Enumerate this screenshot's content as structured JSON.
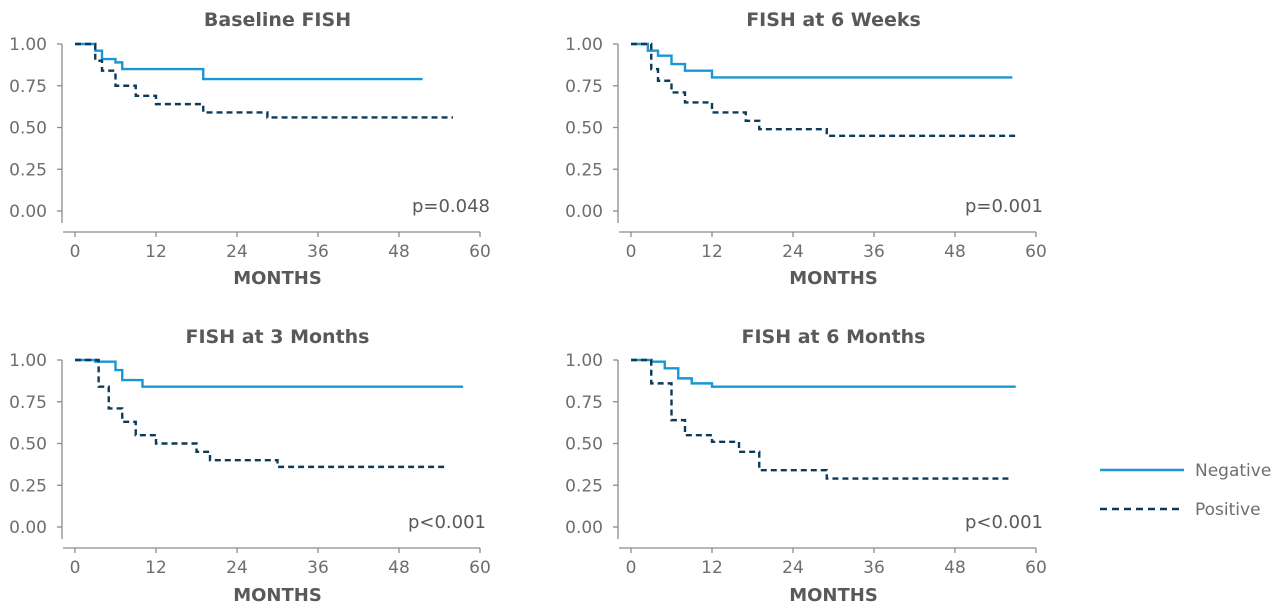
{
  "colors": {
    "negative": "#1a96d3",
    "positive": "#0c3a59",
    "axis": "#8a8c8e",
    "text": "#58595b"
  },
  "legend": {
    "items": [
      {
        "label": "Negative",
        "style": "solid",
        "color": "#1a96d3"
      },
      {
        "label": "Positive",
        "style": "dashed",
        "color": "#0c3a59"
      }
    ]
  },
  "chart_data": [
    {
      "type": "line",
      "title": "Baseline FISH",
      "xlabel": "MONTHS",
      "ylabel": "",
      "xlim": [
        0,
        60
      ],
      "ylim": [
        0,
        1
      ],
      "xticks": [
        "0",
        "12",
        "24",
        "36",
        "48",
        "60"
      ],
      "yticks": [
        "0.00",
        "0.25",
        "0.50",
        "0.75",
        "1.00"
      ],
      "annotation": "p=0.048",
      "series": [
        {
          "name": "Negative",
          "style": "solid",
          "x": [
            0,
            3,
            4,
            6,
            7,
            19,
            51.5
          ],
          "y": [
            1.0,
            0.96,
            0.91,
            0.89,
            0.85,
            0.79,
            0.79
          ]
        },
        {
          "name": "Positive",
          "style": "dashed",
          "x": [
            0,
            3,
            4,
            6,
            9,
            12,
            19,
            28.5,
            56
          ],
          "y": [
            1.0,
            0.9,
            0.84,
            0.75,
            0.69,
            0.64,
            0.59,
            0.56,
            0.56
          ]
        }
      ]
    },
    {
      "type": "line",
      "title": "FISH at 6 Weeks",
      "xlabel": "MONTHS",
      "ylabel": "",
      "xlim": [
        0,
        60
      ],
      "ylim": [
        0,
        1
      ],
      "xticks": [
        "0",
        "12",
        "24",
        "36",
        "48",
        "60"
      ],
      "yticks": [
        "0.00",
        "0.25",
        "0.50",
        "0.75",
        "1.00"
      ],
      "annotation": "p=0.001",
      "series": [
        {
          "name": "Negative",
          "style": "solid",
          "x": [
            0,
            2.5,
            4,
            6,
            8,
            12,
            56.5
          ],
          "y": [
            1.0,
            0.96,
            0.93,
            0.88,
            0.84,
            0.8,
            0.8
          ]
        },
        {
          "name": "Positive",
          "style": "dashed",
          "x": [
            0,
            3,
            4,
            6,
            8,
            12,
            17,
            19,
            29,
            57
          ],
          "y": [
            1.0,
            0.85,
            0.78,
            0.71,
            0.65,
            0.59,
            0.54,
            0.49,
            0.45,
            0.45
          ]
        }
      ]
    },
    {
      "type": "line",
      "title": "FISH at 3 Months",
      "xlabel": "MONTHS",
      "ylabel": "",
      "xlim": [
        0,
        60
      ],
      "ylim": [
        0,
        1
      ],
      "xticks": [
        "0",
        "12",
        "24",
        "36",
        "48",
        "60"
      ],
      "yticks": [
        "0.00",
        "0.25",
        "0.50",
        "0.75",
        "1.00"
      ],
      "annotation": "p<0.001",
      "series": [
        {
          "name": "Negative",
          "style": "solid",
          "x": [
            0,
            3,
            6,
            7,
            10,
            57.5
          ],
          "y": [
            1.0,
            0.99,
            0.94,
            0.88,
            0.84,
            0.84
          ]
        },
        {
          "name": "Positive",
          "style": "dashed",
          "x": [
            0,
            3.5,
            5,
            7,
            9,
            12,
            18,
            20,
            30,
            55
          ],
          "y": [
            1.0,
            0.84,
            0.71,
            0.63,
            0.55,
            0.5,
            0.45,
            0.4,
            0.36,
            0.36
          ]
        }
      ]
    },
    {
      "type": "line",
      "title": "FISH at 6 Months",
      "xlabel": "MONTHS",
      "ylabel": "",
      "xlim": [
        0,
        60
      ],
      "ylim": [
        0,
        1
      ],
      "xticks": [
        "0",
        "12",
        "24",
        "36",
        "48",
        "60"
      ],
      "yticks": [
        "0.00",
        "0.25",
        "0.50",
        "0.75",
        "1.00"
      ],
      "annotation": "p<0.001",
      "series": [
        {
          "name": "Negative",
          "style": "solid",
          "x": [
            0,
            3,
            5,
            7,
            9,
            12,
            57
          ],
          "y": [
            1.0,
            0.99,
            0.95,
            0.89,
            0.86,
            0.84,
            0.84
          ]
        },
        {
          "name": "Positive",
          "style": "dashed",
          "x": [
            0,
            3,
            6,
            8,
            12,
            16,
            19,
            29,
            56.5
          ],
          "y": [
            1.0,
            0.86,
            0.64,
            0.55,
            0.51,
            0.45,
            0.34,
            0.29,
            0.29
          ]
        }
      ]
    }
  ]
}
